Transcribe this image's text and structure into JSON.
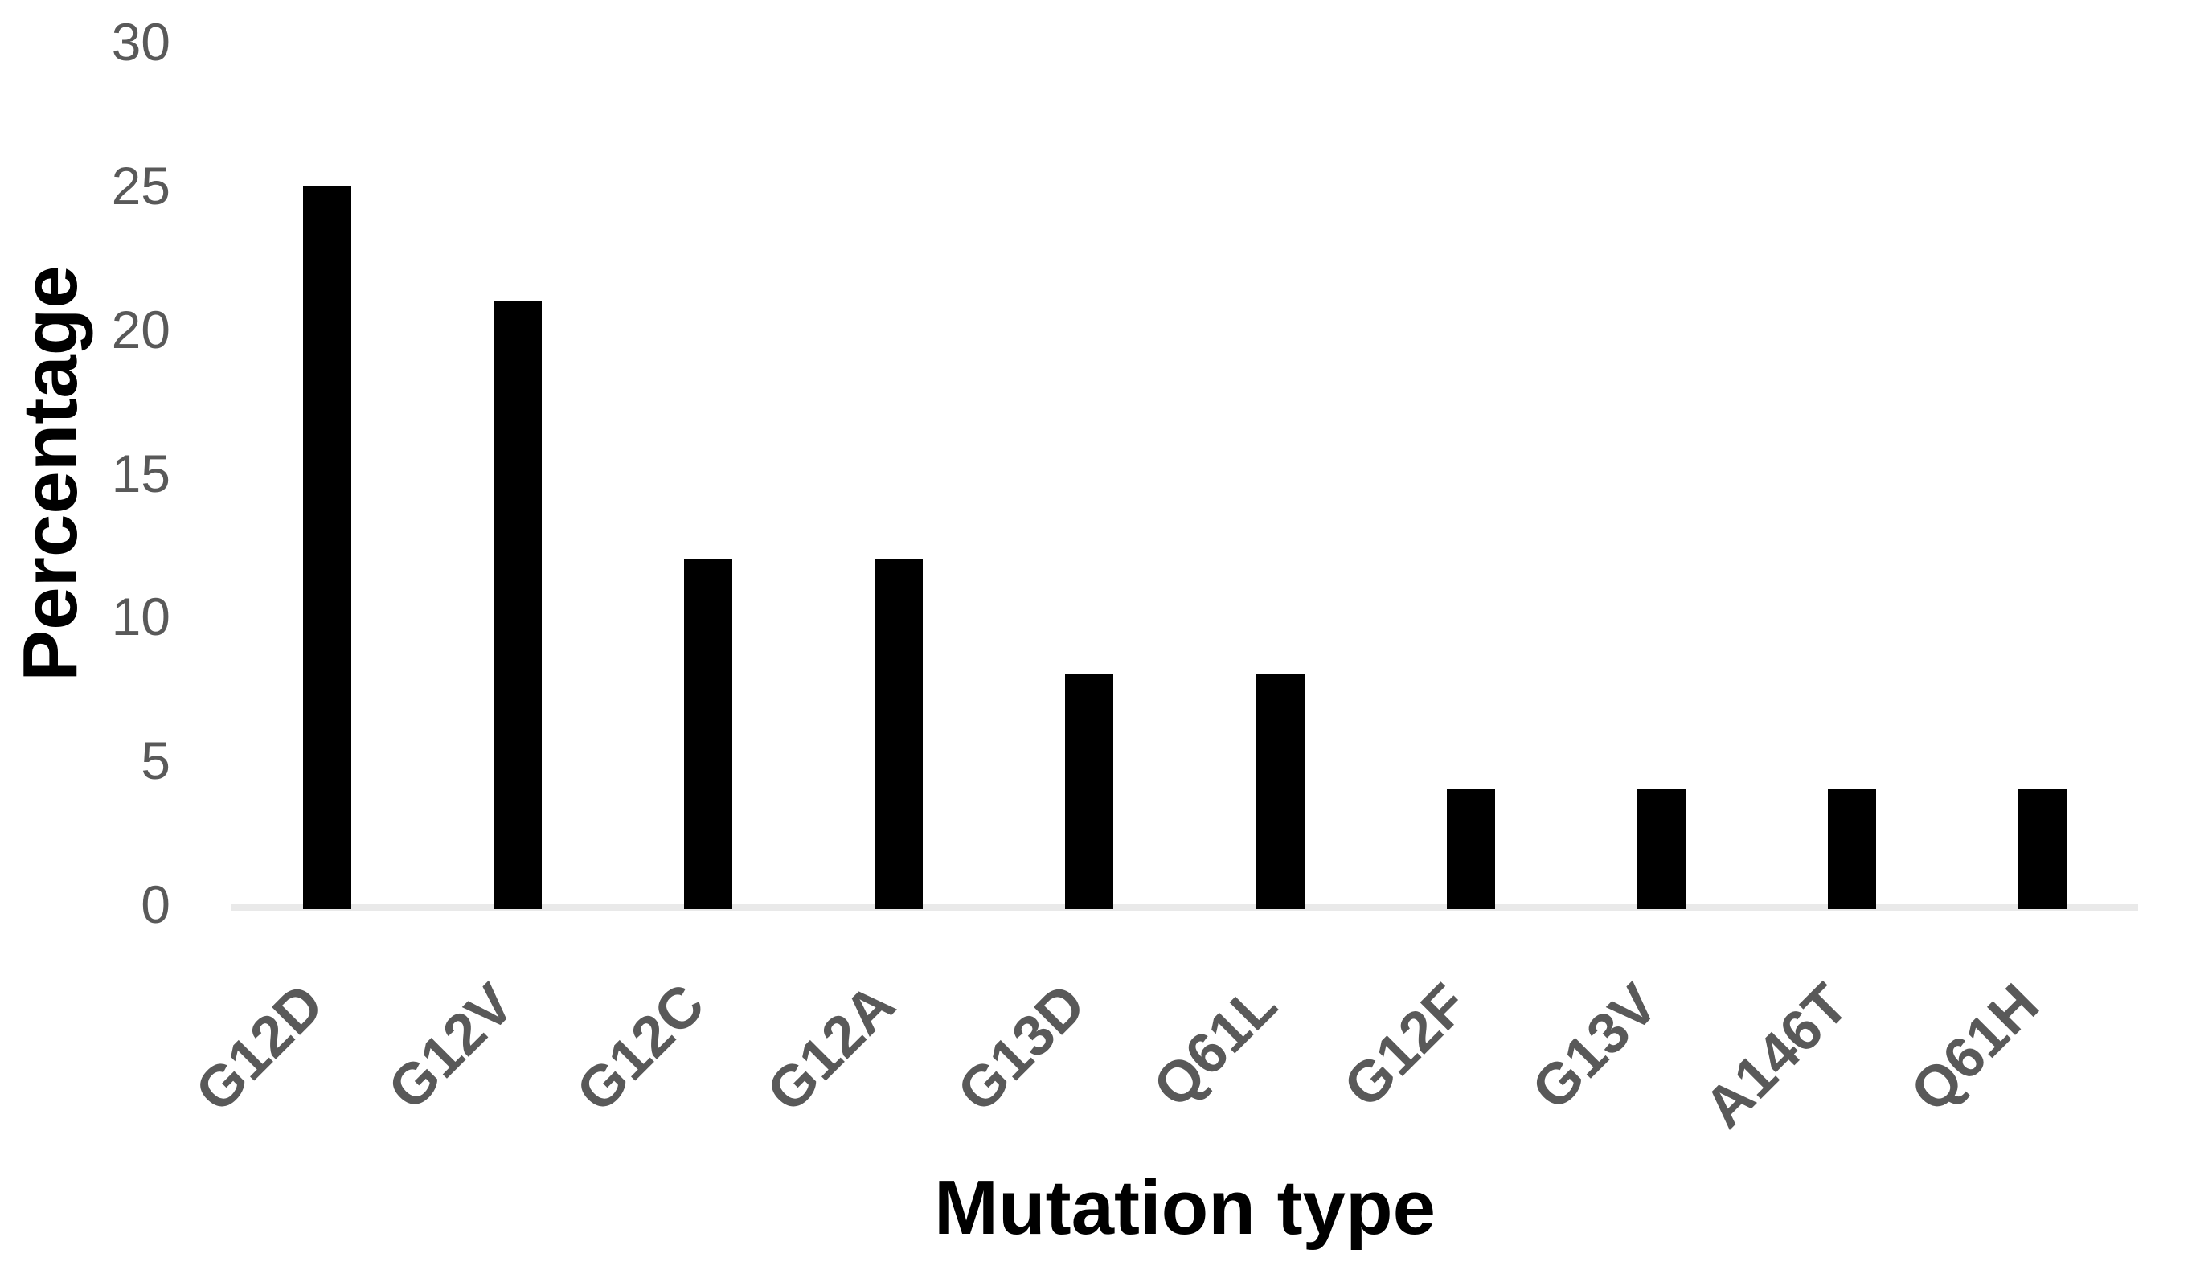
{
  "chart_data": {
    "type": "bar",
    "title": "",
    "categories": [
      "G12D",
      "G12V",
      "G12C",
      "G12A",
      "G13D",
      "Q61L",
      "G12F",
      "G13V",
      "A146T",
      "Q61H"
    ],
    "values": [
      25,
      21,
      12,
      12,
      8,
      8,
      4,
      4,
      4,
      4
    ],
    "xlabel": "Mutation type",
    "ylabel": "Percentage",
    "yticks": [
      0,
      5,
      10,
      15,
      20,
      25,
      30
    ],
    "ylim": [
      0,
      30
    ],
    "grid": "off",
    "legend": "none",
    "bar_color": "#000000",
    "tick_label_color": "#595959",
    "axis_title_color": "#000000",
    "axis_line_color": "#e9e9e9",
    "background_color": "#ffffff"
  }
}
